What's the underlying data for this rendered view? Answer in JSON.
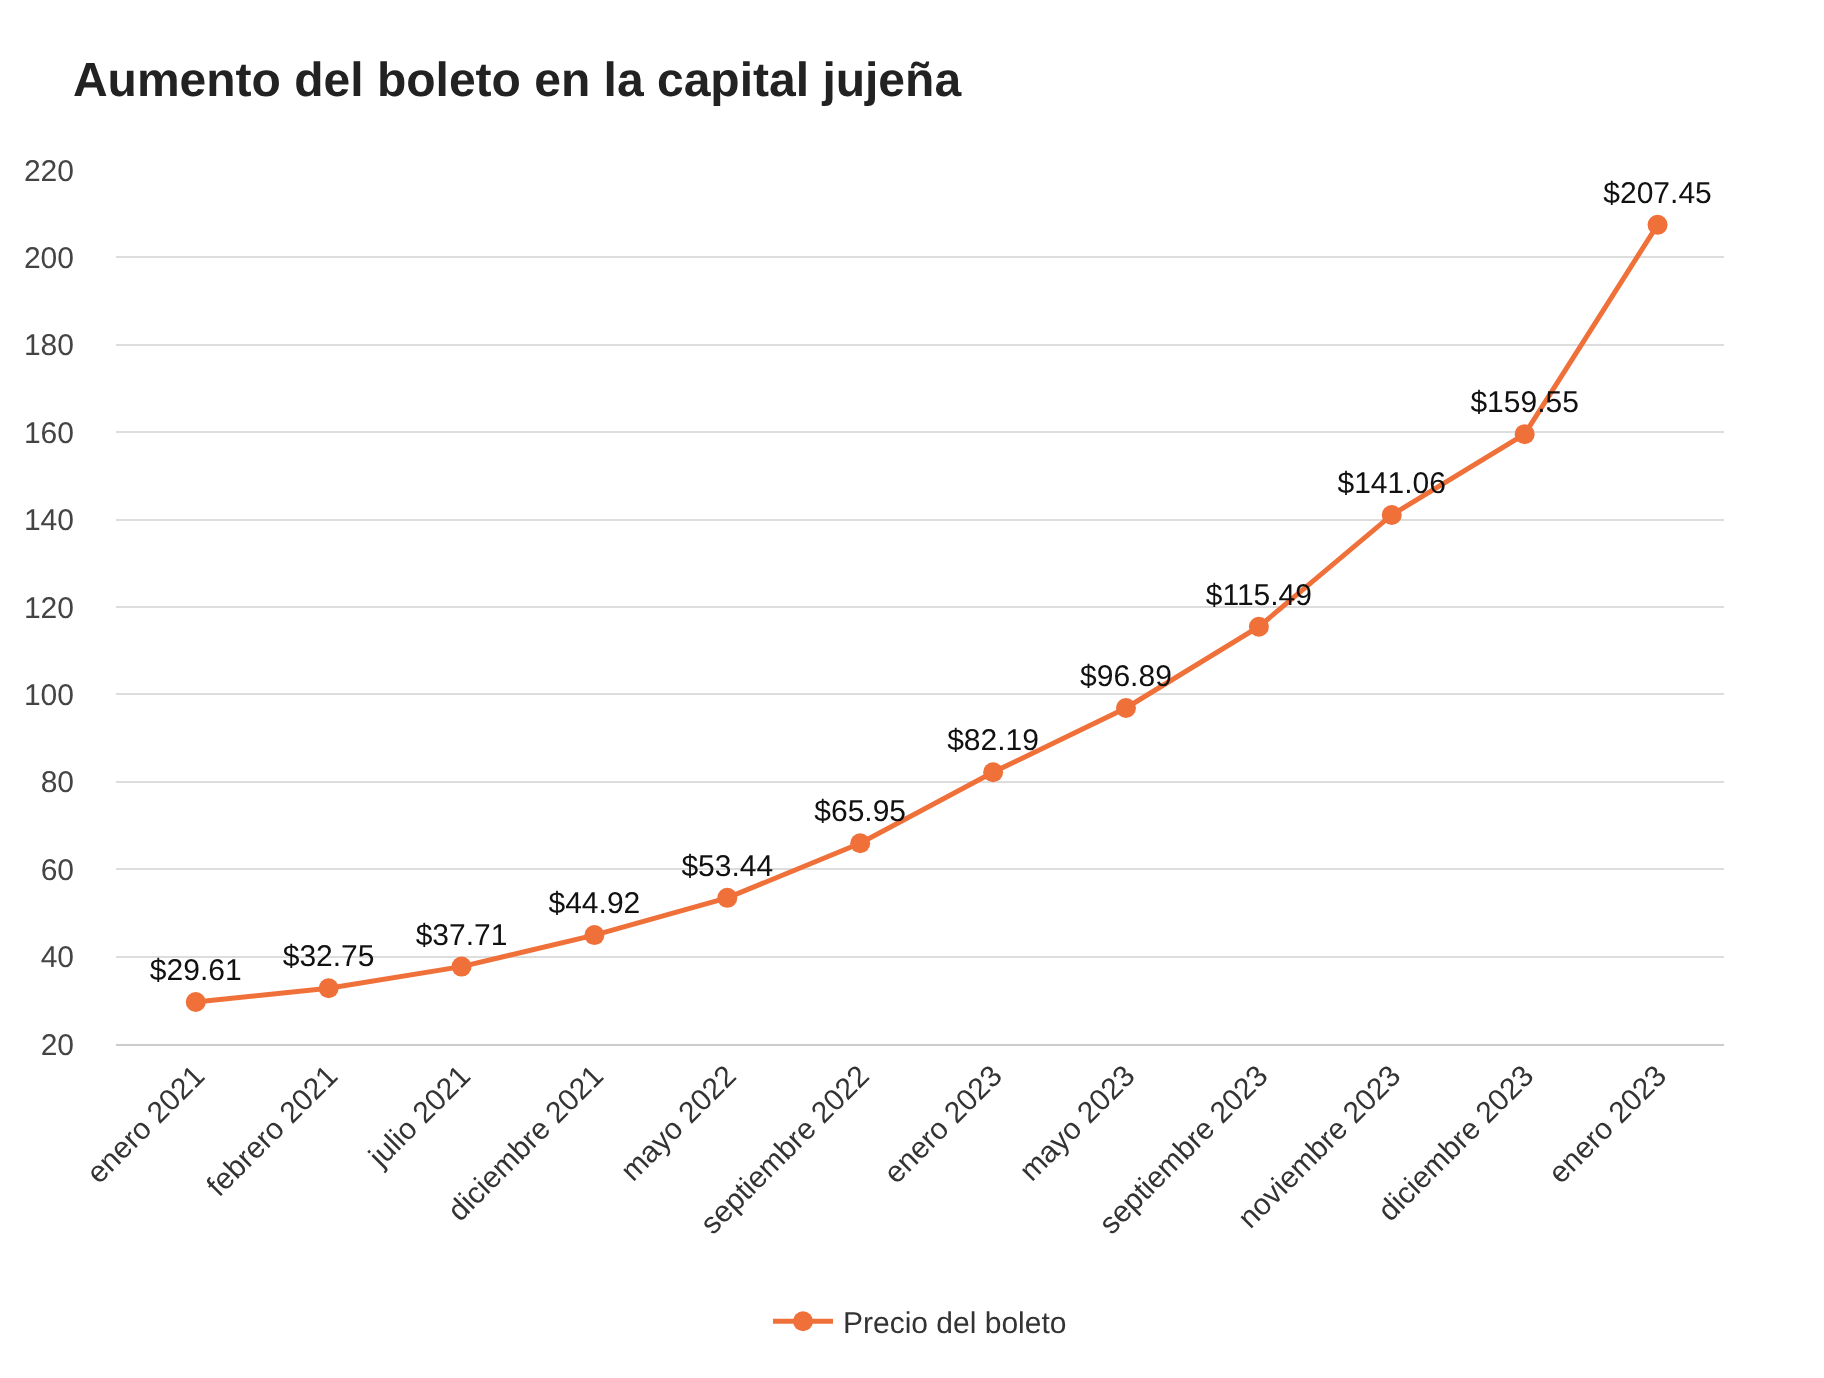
{
  "chart_data": {
    "type": "line",
    "title": "Aumento del boleto en la capital jujeña",
    "categories": [
      "enero 2021",
      "febrero 2021",
      "julio 2021",
      "diciembre 2021",
      "mayo 2022",
      "septiembre 2022",
      "enero 2023",
      "mayo 2023",
      "septiembre 2023",
      "noviembre 2023",
      "diciembre 2023",
      "enero 2023"
    ],
    "series": [
      {
        "name": "Precio del boleto",
        "color": "#f0703a",
        "values": [
          29.61,
          32.75,
          37.71,
          44.92,
          53.44,
          65.95,
          82.19,
          96.89,
          115.49,
          141.06,
          159.55,
          207.45
        ],
        "value_labels": [
          "$29.61",
          "$32.75",
          "$37.71",
          "$44.92",
          "$53.44",
          "$65.95",
          "$82.19",
          "$96.89",
          "$115.49",
          "$141.06",
          "$159.55",
          "$207.45"
        ]
      }
    ],
    "ylim": [
      20,
      220
    ],
    "yticks": [
      20,
      40,
      60,
      80,
      100,
      120,
      140,
      160,
      180,
      200,
      220
    ],
    "grid": "y",
    "legend": "bottom",
    "marker": "circle",
    "line_style": "solid"
  }
}
